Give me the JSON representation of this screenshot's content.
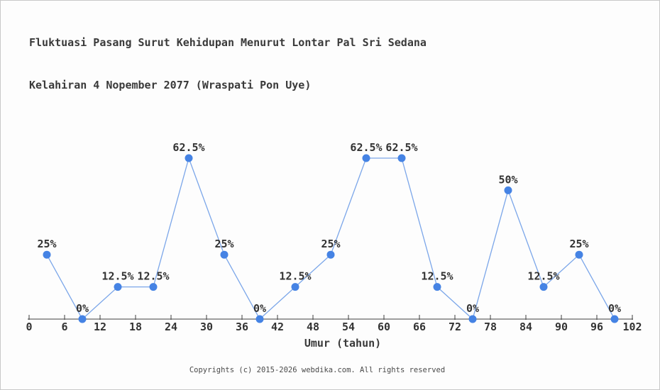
{
  "title": {
    "line1": "Fluktuasi Pasang Surut Kehidupan Menurut Lontar Pal Sri Sedana",
    "line2": "Kelahiran 4 Nopember 2077 (Wraspati Pon Uye)"
  },
  "x_axis": {
    "label": "Umur (tahun)"
  },
  "footer": {
    "text": "Copyrights (c) 2015-2026 webdika.com. All rights reserved"
  },
  "chart_data": {
    "type": "line",
    "title": "Fluktuasi Pasang Surut Kehidupan Menurut Lontar Pal Sri Sedana Kelahiran 4 Nopember 2077 (Wraspati Pon Uye)",
    "xlabel": "Umur (tahun)",
    "ylabel": "",
    "x": [
      3,
      9,
      15,
      21,
      27,
      33,
      39,
      45,
      51,
      57,
      63,
      69,
      75,
      81,
      87,
      93,
      99
    ],
    "values": [
      25,
      0,
      12.5,
      12.5,
      62.5,
      25,
      0,
      12.5,
      25,
      62.5,
      62.5,
      12.5,
      0,
      50,
      12.5,
      25,
      0
    ],
    "point_labels": [
      "25%",
      "0%",
      "12.5%",
      "12.5%",
      "62.5%",
      "25%",
      "0%",
      "12.5%",
      "25%",
      "62.5%",
      "62.5%",
      "12.5%",
      "0%",
      "50%",
      "12.5%",
      "25%",
      "0%"
    ],
    "x_ticks": [
      0,
      6,
      12,
      18,
      24,
      30,
      36,
      42,
      48,
      54,
      60,
      66,
      72,
      78,
      84,
      90,
      96,
      102
    ],
    "xlim": [
      0,
      102
    ],
    "ylim": [
      0,
      70
    ],
    "grid": false,
    "legend": false,
    "colors": {
      "line": "#7ba6e9",
      "marker": "#4583e4",
      "axis": "#3f3f3f",
      "text": "#333333"
    }
  }
}
